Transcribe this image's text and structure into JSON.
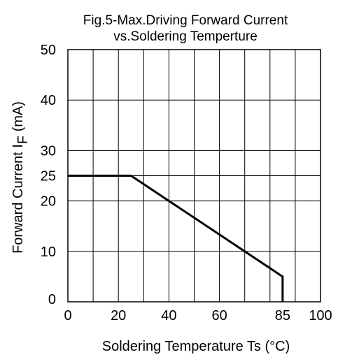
{
  "chart_data": {
    "type": "line",
    "title_line1": "Fig.5-Max.Driving Forward Current",
    "title_line2": "vs.Soldering Temperture",
    "xlabel": "Soldering Temperature Ts (°C)",
    "ylabel_main": "Forward Current  I",
    "ylabel_sub": "F",
    "ylabel_unit": " (mA)",
    "xlim": [
      0,
      100
    ],
    "ylim": [
      0,
      50
    ],
    "x_ticks": [
      0,
      20,
      40,
      60,
      85,
      100
    ],
    "x_tick_labels": [
      "0",
      "20",
      "40",
      "60",
      "85",
      "100"
    ],
    "y_ticks": [
      0,
      10,
      20,
      25,
      30,
      40,
      50
    ],
    "y_tick_labels": [
      "0",
      "10",
      "20",
      "25",
      "30",
      "40",
      "50"
    ],
    "grid": true,
    "series": [
      {
        "x": [
          0,
          25,
          85,
          85
        ],
        "y": [
          25,
          25,
          5,
          0
        ],
        "color": "#000000"
      }
    ]
  }
}
